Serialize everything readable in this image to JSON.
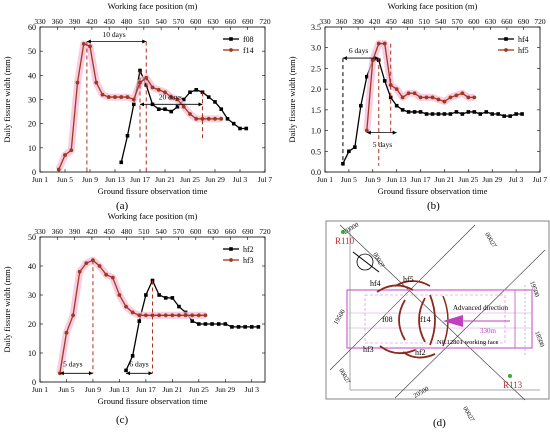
{
  "chart_data": [
    {
      "panel": "(a)",
      "type": "line",
      "top_axis_label": "Working face position (m)",
      "top_ticks": [
        "330",
        "360",
        "390",
        "420",
        "450",
        "480",
        "510",
        "540",
        "570",
        "600",
        "630",
        "660",
        "690",
        "720"
      ],
      "xlabel": "Ground fissure observation time",
      "x_ticks": [
        "Jun 1",
        "Jun 5",
        "Jun 9",
        "Jun 13",
        "Jun 17",
        "Jun 21",
        "Jun 25",
        "Jun 29",
        "Jul 3",
        "Jul 7"
      ],
      "ylabel": "Daily fissure width (mm)",
      "y_ticks": [
        "0",
        "10",
        "20",
        "30",
        "40",
        "50",
        "60"
      ],
      "ylim": [
        0,
        60
      ],
      "xlim": [
        1,
        37
      ],
      "series": [
        {
          "name": "f08",
          "color": "#000000",
          "marker": "square",
          "x": [
            14,
            15,
            16,
            17,
            18,
            19,
            20,
            21,
            22,
            23,
            24,
            25,
            26,
            27,
            28,
            29,
            30,
            31,
            32,
            33,
            34
          ],
          "y": [
            4,
            15,
            28,
            42,
            36,
            28,
            26,
            26,
            25,
            27,
            30,
            33,
            34,
            33,
            31,
            29,
            26,
            22,
            20,
            18,
            18
          ]
        },
        {
          "name": "f14",
          "color": "#a0391d",
          "marker": "circle",
          "x": [
            4,
            5,
            6,
            7,
            8,
            9,
            10,
            11,
            12,
            13,
            14,
            15,
            16,
            17,
            18,
            19,
            20,
            21,
            22,
            23,
            24,
            25,
            26,
            27,
            28,
            29,
            30
          ],
          "y": [
            1,
            7,
            9,
            37,
            53,
            52,
            37,
            32,
            31,
            31,
            31,
            31,
            30,
            37,
            39,
            35,
            34,
            33,
            31,
            30,
            27,
            24,
            22,
            22,
            22,
            22,
            22
          ]
        }
      ],
      "annotations": [
        "10 days",
        "20 days"
      ]
    },
    {
      "panel": "(b)",
      "type": "line",
      "top_axis_label": "Working face position (m)",
      "top_ticks": [
        "330",
        "360",
        "390",
        "420",
        "450",
        "480",
        "510",
        "540",
        "570",
        "600",
        "630",
        "660",
        "690",
        "720"
      ],
      "xlabel": "Ground fissure observation time",
      "x_ticks": [
        "Jun 1",
        "Jun 5",
        "Jun 9",
        "Jun 13",
        "Jun 17",
        "Jun 21",
        "Jun 25",
        "Jun 29",
        "Jul 3",
        "Jul 7"
      ],
      "ylabel": "Daily fissure width (mm)",
      "y_ticks": [
        "0.0",
        "0.5",
        "1.0",
        "1.5",
        "2.0",
        "2.5",
        "3.0",
        "3.5"
      ],
      "ylim": [
        0,
        3.5
      ],
      "xlim": [
        1,
        37
      ],
      "series": [
        {
          "name": "hf4",
          "color": "#000000",
          "marker": "square",
          "x": [
            4,
            5,
            6,
            7,
            8,
            9,
            10,
            11,
            12,
            13,
            14,
            15,
            16,
            17,
            18,
            19,
            20,
            21,
            22,
            23,
            24,
            25,
            26,
            27,
            28,
            29,
            30,
            31,
            32,
            33,
            34
          ],
          "y": [
            0.2,
            0.5,
            0.6,
            1.6,
            2.3,
            2.7,
            2.7,
            2.2,
            1.8,
            1.6,
            1.5,
            1.45,
            1.45,
            1.45,
            1.4,
            1.4,
            1.4,
            1.4,
            1.4,
            1.45,
            1.4,
            1.45,
            1.45,
            1.4,
            1.45,
            1.4,
            1.4,
            1.35,
            1.35,
            1.4,
            1.4
          ]
        },
        {
          "name": "hf5",
          "color": "#a0391d",
          "marker": "circle",
          "x": [
            8,
            9,
            10,
            11,
            12,
            13,
            14,
            15,
            16,
            17,
            18,
            19,
            20,
            21,
            22,
            23,
            24,
            25,
            26
          ],
          "y": [
            1.0,
            2.7,
            3.1,
            3.1,
            2.1,
            2.0,
            1.8,
            1.9,
            1.9,
            1.8,
            1.8,
            1.8,
            1.75,
            1.7,
            1.8,
            1.85,
            1.9,
            1.8,
            1.8
          ]
        }
      ],
      "annotations": [
        "6 days",
        "5 days"
      ]
    },
    {
      "panel": "(c)",
      "type": "line",
      "top_axis_label": "Working face position (m)",
      "top_ticks": [
        "330",
        "360",
        "390",
        "420",
        "450",
        "480",
        "510",
        "540",
        "570",
        "600",
        "630",
        "660",
        "690",
        "720"
      ],
      "xlabel": "Ground fissure observation time",
      "x_ticks": [
        "Jun 1",
        "Jun 5",
        "Jun 9",
        "Jun 13",
        "Jun 17",
        "Jun 21",
        "Jun 25",
        "Jun 29",
        "Jul 3"
      ],
      "ylabel": "Daily fissure width (mm)",
      "y_ticks": [
        "0",
        "10",
        "20",
        "30",
        "40",
        "50"
      ],
      "ylim": [
        0,
        50
      ],
      "xlim": [
        1,
        35
      ],
      "series": [
        {
          "name": "hf2",
          "color": "#000000",
          "marker": "square",
          "x": [
            14,
            15,
            16,
            17,
            18,
            19,
            20,
            21,
            22,
            23,
            24,
            25,
            26,
            27,
            28,
            29,
            30,
            31,
            32,
            33,
            34
          ],
          "y": [
            4,
            9,
            21,
            30,
            35,
            30,
            29,
            29,
            26,
            24,
            21,
            20,
            20,
            20,
            20,
            20,
            19,
            19,
            19,
            19,
            19
          ]
        },
        {
          "name": "hf3",
          "color": "#a0391d",
          "marker": "circle",
          "x": [
            4,
            5,
            6,
            7,
            8,
            9,
            10,
            11,
            12,
            13,
            14,
            15,
            16,
            17,
            18,
            19,
            20,
            21,
            22,
            23,
            24,
            25,
            26
          ],
          "y": [
            3,
            17,
            23,
            38,
            41,
            42,
            40,
            37,
            36,
            30,
            26,
            24,
            23,
            23,
            23,
            23,
            23,
            23,
            23,
            23,
            23,
            23,
            23
          ]
        }
      ],
      "annotations": [
        "5 days",
        "6 days"
      ]
    }
  ],
  "diagram": {
    "panel": "(d)",
    "points": [
      "R110",
      "R113"
    ],
    "fissures": [
      "hf4",
      "hf5",
      "f08",
      "f14",
      "hf3",
      "hf2"
    ],
    "direction_label": "Advanced direction",
    "distance_label": "330m",
    "face_label": "N0.12801 working face",
    "coord_labels": [
      "19500",
      "20000",
      "20500",
      "19500",
      "18500",
      "00027",
      "00027",
      "00027",
      "00027"
    ]
  }
}
